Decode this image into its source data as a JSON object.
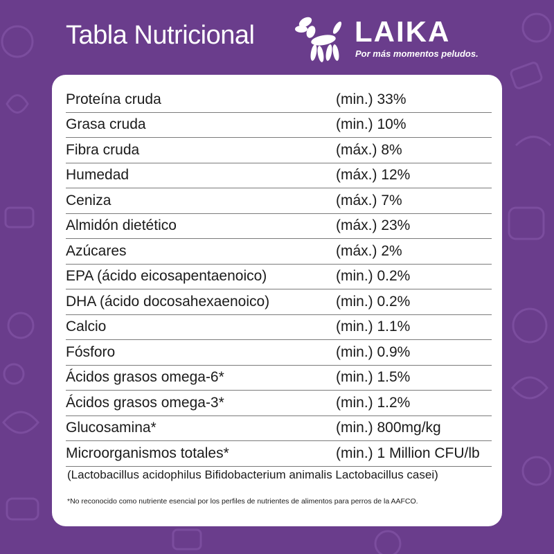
{
  "header": {
    "title": "Tabla Nutricional",
    "brand": "LAIKA",
    "tagline": "Por más momentos peludos."
  },
  "logo": {
    "icon": "balloon-dog-icon"
  },
  "colors": {
    "background": "#6a3d8c",
    "card": "#ffffff",
    "text": "#1a1a1a"
  },
  "nutrients": [
    {
      "name": "Proteína cruda",
      "value": "(min.) 33%"
    },
    {
      "name": "Grasa cruda",
      "value": "(min.) 10%"
    },
    {
      "name": "Fibra cruda",
      "value": "(máx.) 8%"
    },
    {
      "name": "Humedad",
      "value": "(máx.) 12%"
    },
    {
      "name": "Ceniza",
      "value": "(máx.) 7%"
    },
    {
      "name": "Almidón dietético",
      "value": "(máx.) 23%"
    },
    {
      "name": "Azúcares",
      "value": "(máx.) 2%"
    },
    {
      "name": "EPA (ácido eicosapentaenoico)",
      "value": "(min.) 0.2%"
    },
    {
      "name": "DHA (ácido docosahexaenoico)",
      "value": "(min.) 0.2%"
    },
    {
      "name": "Calcio",
      "value": "(min.) 1.1%"
    },
    {
      "name": "Fósforo",
      "value": "(min.) 0.9%"
    },
    {
      "name": "Ácidos grasos omega-6*",
      "value": "(min.) 1.5%"
    },
    {
      "name": "Ácidos grasos omega-3*",
      "value": "(min.) 1.2%"
    },
    {
      "name": "Glucosamina*",
      "value": "(min.) 800mg/kg"
    },
    {
      "name": "Microorganismos totales*",
      "value": "(min.) 1 Million CFU/lb"
    }
  ],
  "micro_note": "(Lactobacillus acidophilus Bifidobacterium animalis Lactobacillus casei)",
  "footnote": "*No reconocido como nutriente esencial por los perfiles de nutrientes de alimentos para perros de la AAFCO."
}
